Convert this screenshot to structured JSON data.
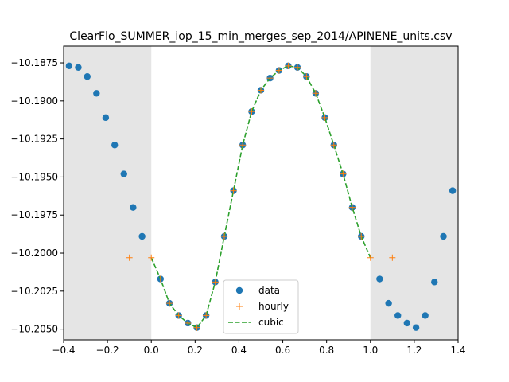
{
  "chart_data": {
    "type": "scatter",
    "title": "ClearFlo_SUMMER_iop_15_min_merges_sep_2014/APINENE_units.csv",
    "xlabel": "",
    "ylabel": "",
    "xlim": [
      -0.4,
      1.4
    ],
    "ylim": [
      -10.2057,
      -10.1864
    ],
    "xticks": [
      -0.4,
      -0.2,
      0.0,
      0.2,
      0.4,
      0.6,
      0.8,
      1.0,
      1.2,
      1.4
    ],
    "xtick_labels": [
      "−0.4",
      "−0.2",
      "0.0",
      "0.2",
      "0.4",
      "0.6",
      "0.8",
      "1.0",
      "1.2",
      "1.4"
    ],
    "yticks": [
      -10.1875,
      -10.19,
      -10.1925,
      -10.195,
      -10.1975,
      -10.2,
      -10.2025,
      -10.205
    ],
    "ytick_labels": [
      "−10.1875",
      "−10.1900",
      "−10.1925",
      "−10.1950",
      "−10.1975",
      "−10.2000",
      "−10.2025",
      "−10.2050"
    ],
    "shaded_regions": [
      [
        -0.4,
        0.0
      ],
      [
        1.0,
        1.4
      ]
    ],
    "colors": {
      "data": "#1f77b4",
      "hourly": "#ff7f0e",
      "cubic": "#2ca02c",
      "shade": "#e5e5e5"
    },
    "legend": {
      "placement": "lower-center",
      "entries": [
        "data",
        "hourly",
        "cubic"
      ]
    },
    "series": [
      {
        "name": "data",
        "marker": "circle",
        "x": [
          -0.375,
          -0.333,
          -0.292,
          -0.25,
          -0.208,
          -0.167,
          -0.125,
          -0.083,
          -0.042,
          0.042,
          0.083,
          0.125,
          0.167,
          0.208,
          0.25,
          0.292,
          0.333,
          0.375,
          0.417,
          0.458,
          0.5,
          0.542,
          0.583,
          0.625,
          0.667,
          0.708,
          0.75,
          0.792,
          0.833,
          0.875,
          0.917,
          0.958,
          1.042,
          1.083,
          1.125,
          1.167,
          1.208,
          1.25,
          1.292,
          1.333,
          1.375
        ],
        "y": [
          -10.1877,
          -10.1878,
          -10.1884,
          -10.1895,
          -10.1911,
          -10.1929,
          -10.1948,
          -10.197,
          -10.1989,
          -10.2017,
          -10.2033,
          -10.2041,
          -10.2046,
          -10.2049,
          -10.2041,
          -10.2019,
          -10.1989,
          -10.1959,
          -10.1929,
          -10.1907,
          -10.1893,
          -10.1885,
          -10.188,
          -10.1877,
          -10.1878,
          -10.1884,
          -10.1895,
          -10.1911,
          -10.1929,
          -10.1948,
          -10.197,
          -10.1989,
          -10.2017,
          -10.2033,
          -10.2041,
          -10.2046,
          -10.2049,
          -10.2041,
          -10.2019,
          -10.1989,
          -10.1959
        ]
      },
      {
        "name": "hourly",
        "marker": "plus",
        "x": [
          -0.1,
          0.0,
          0.042,
          0.083,
          0.125,
          0.167,
          0.208,
          0.25,
          0.292,
          0.333,
          0.375,
          0.417,
          0.458,
          0.5,
          0.542,
          0.583,
          0.625,
          0.667,
          0.708,
          0.75,
          0.792,
          0.833,
          0.875,
          0.917,
          0.958,
          1.0,
          1.1
        ],
        "y": [
          -10.2003,
          -10.2003,
          -10.2017,
          -10.2033,
          -10.2041,
          -10.2046,
          -10.2049,
          -10.2041,
          -10.2019,
          -10.1989,
          -10.1959,
          -10.1929,
          -10.1907,
          -10.1893,
          -10.1885,
          -10.188,
          -10.1877,
          -10.1878,
          -10.1884,
          -10.1895,
          -10.1911,
          -10.1929,
          -10.1948,
          -10.197,
          -10.1989,
          -10.2003,
          -10.2003
        ]
      },
      {
        "name": "cubic",
        "line": "dashed",
        "x": [
          0.0,
          0.042,
          0.083,
          0.125,
          0.167,
          0.208,
          0.25,
          0.292,
          0.333,
          0.375,
          0.417,
          0.458,
          0.5,
          0.542,
          0.583,
          0.625,
          0.667,
          0.708,
          0.75,
          0.792,
          0.833,
          0.875,
          0.917,
          0.958,
          1.0
        ],
        "y": [
          -10.2003,
          -10.2017,
          -10.2033,
          -10.2041,
          -10.2046,
          -10.2049,
          -10.2041,
          -10.2019,
          -10.1989,
          -10.1959,
          -10.1929,
          -10.1907,
          -10.1893,
          -10.1885,
          -10.188,
          -10.1877,
          -10.1878,
          -10.1884,
          -10.1895,
          -10.1911,
          -10.1929,
          -10.1948,
          -10.197,
          -10.1989,
          -10.2003
        ]
      }
    ]
  }
}
